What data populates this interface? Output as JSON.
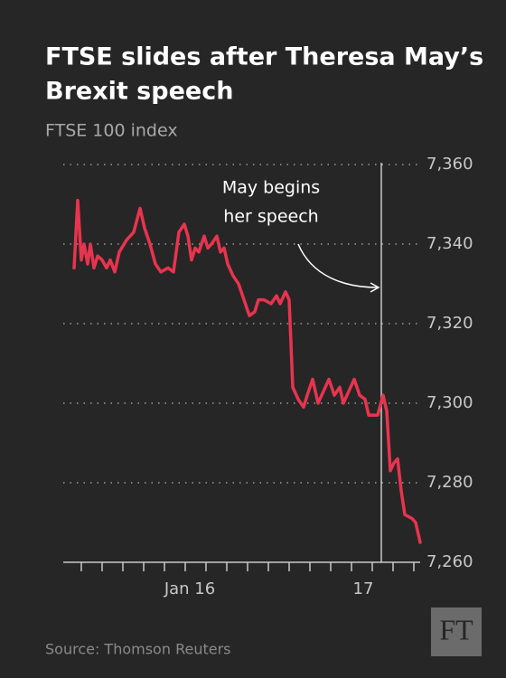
{
  "chart_data": {
    "type": "line",
    "title": [
      "FTSE slides after Theresa May’s",
      "Brexit speech"
    ],
    "subtitle": "FTSE 100 index",
    "source": "Source: Thomson Reuters",
    "logo": "FT",
    "annotation": {
      "lines": [
        "May begins",
        "her speech"
      ],
      "x": 352
    },
    "series": [
      {
        "name": "FTSE 100",
        "color": "#e8344e",
        "x": [
          12,
          16,
          20,
          23,
          27,
          30,
          34,
          38,
          43,
          48,
          52,
          57,
          62,
          70,
          78,
          85,
          90,
          96,
          102,
          108,
          116,
          122,
          128,
          134,
          138,
          142,
          146,
          150,
          156,
          160,
          164,
          170,
          174,
          178,
          182,
          188,
          194,
          200,
          206,
          212,
          216,
          222,
          230,
          236,
          240,
          246,
          250,
          254,
          260,
          266,
          270,
          276,
          282,
          288,
          294,
          300,
          306,
          310,
          316,
          322,
          328,
          334,
          338,
          348,
          354,
          358,
          362,
          366,
          370,
          374,
          378,
          386,
          390,
          395
        ],
        "values": [
          7334,
          7351,
          7336,
          7340,
          7335,
          7340,
          7334,
          7337,
          7336,
          7334,
          7336,
          7333,
          7338,
          7341,
          7343,
          7349,
          7344,
          7340,
          7335,
          7333,
          7334,
          7333,
          7343,
          7345,
          7342,
          7336,
          7339,
          7338,
          7342,
          7339,
          7340,
          7342,
          7338,
          7339,
          7335,
          7332,
          7330,
          7326,
          7322,
          7323,
          7326,
          7326,
          7325,
          7327,
          7325,
          7328,
          7326,
          7304,
          7301,
          7299,
          7302,
          7306,
          7300,
          7303,
          7306,
          7302,
          7304,
          7300,
          7303,
          7306,
          7302,
          7301,
          7297,
          7297,
          7302,
          7298,
          7283,
          7285,
          7286,
          7278,
          7272,
          7271,
          7270,
          7265
        ]
      }
    ],
    "xlim": [
      0,
      395
    ],
    "xticks": [
      20,
      43,
      66,
      89,
      112,
      135,
      158,
      181,
      204,
      227,
      250,
      273,
      296,
      319,
      342,
      365,
      388
    ],
    "xlabels": [
      {
        "value": 140,
        "label": "Jan 16"
      },
      {
        "value": 332,
        "label": "17"
      }
    ],
    "ylim": [
      7260,
      7360
    ],
    "yticks": [
      {
        "value": 7260,
        "label": "7,260"
      },
      {
        "value": 7280,
        "label": "7,280"
      },
      {
        "value": 7300,
        "label": "7,300"
      },
      {
        "value": 7320,
        "label": "7,320"
      },
      {
        "value": 7340,
        "label": "7,340"
      },
      {
        "value": 7360,
        "label": "7,360"
      }
    ],
    "grid": true
  }
}
